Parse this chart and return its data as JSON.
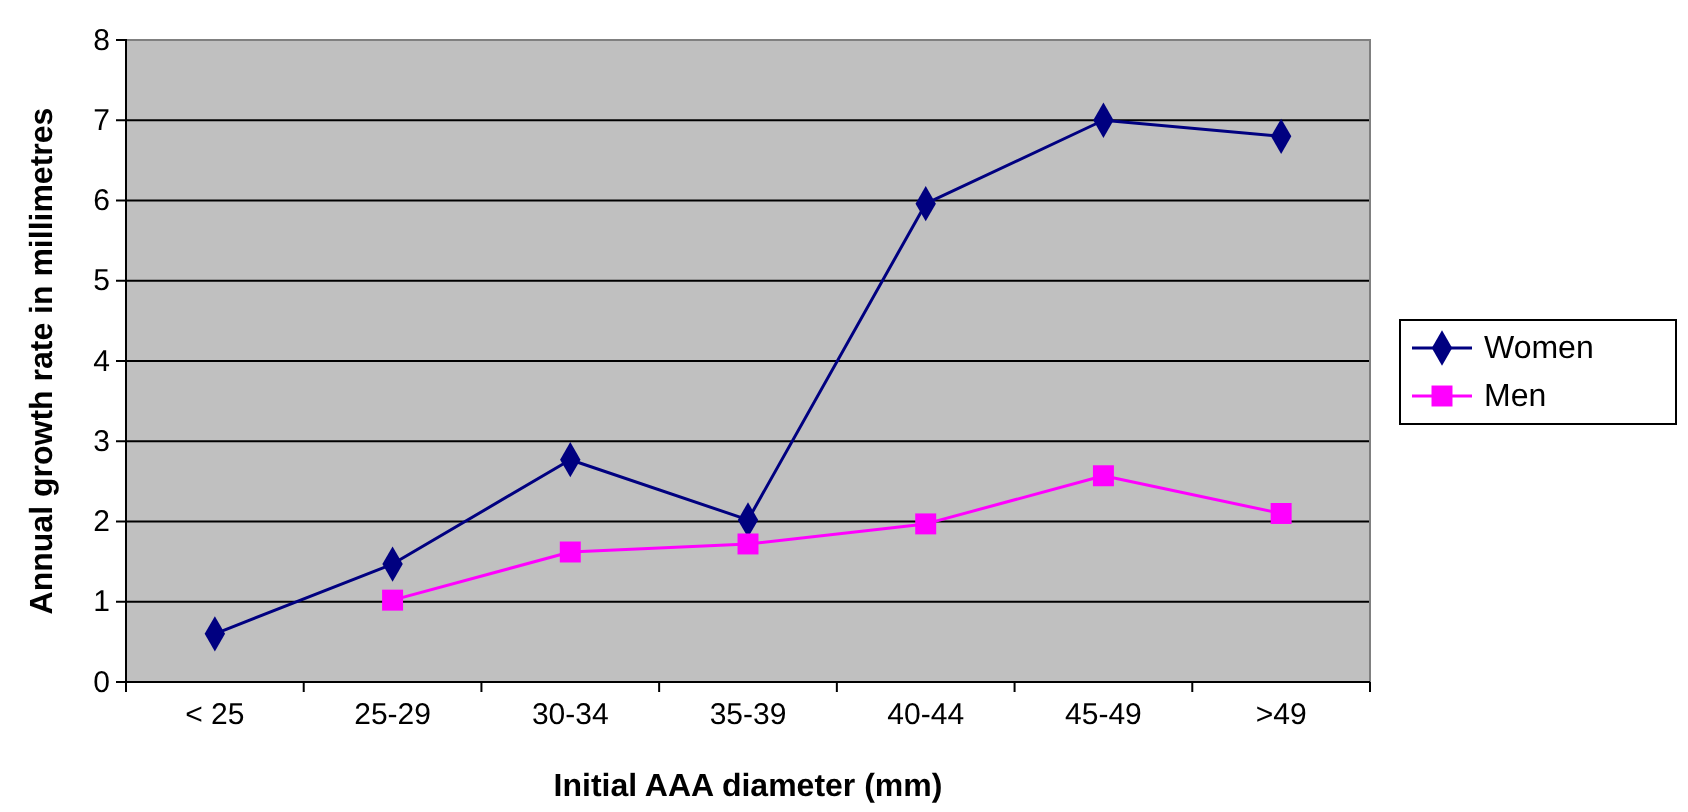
{
  "chart_data": {
    "type": "line",
    "xlabel": "Initial AAA diameter (mm)",
    "ylabel": "Annual growth rate in millimetres",
    "categories": [
      "< 25",
      "25-29",
      "30-34",
      "35-39",
      "40-44",
      "45-49",
      ">49"
    ],
    "series": [
      {
        "name": "Women",
        "color": "#000080",
        "marker": "diamond",
        "values": [
          0.6,
          1.47,
          2.77,
          2.02,
          5.96,
          7.0,
          6.8
        ]
      },
      {
        "name": "Men",
        "color": "#ff00ff",
        "marker": "square",
        "values": [
          null,
          1.02,
          1.62,
          1.72,
          1.97,
          2.57,
          2.1
        ]
      }
    ],
    "ylim": [
      0,
      8
    ],
    "yticks": [
      0,
      1,
      2,
      3,
      4,
      5,
      6,
      7,
      8
    ],
    "grid": "y",
    "legend": "right",
    "line_style": "solid"
  }
}
